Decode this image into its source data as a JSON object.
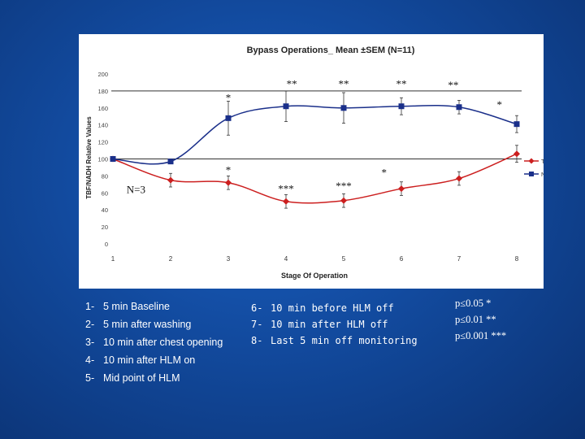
{
  "chart_data": {
    "type": "line",
    "title": "Bypass Operations_ Mean ±SEM (N=11)",
    "xlabel": "Stage Of Operation",
    "ylabel": "TBF/NADH Relative Values",
    "categories": [
      "1",
      "2",
      "3",
      "4",
      "5",
      "6",
      "7",
      "8"
    ],
    "ylim": [
      0,
      200
    ],
    "yticks": [
      "0",
      "20",
      "40",
      "60",
      "80",
      "100",
      "120",
      "140",
      "160",
      "180",
      "200"
    ],
    "reference_lines": [
      100,
      180
    ],
    "grid": false,
    "legend_position": "right",
    "series": [
      {
        "name": "TBF",
        "color": "#cc1f1f",
        "marker": "diamond",
        "values": [
          100,
          75,
          72,
          50,
          51,
          65,
          77,
          106
        ],
        "errors": [
          0,
          8,
          8,
          8,
          8,
          8,
          8,
          10
        ]
      },
      {
        "name": "NADH",
        "color": "#1a2f8a",
        "marker": "square",
        "values": [
          100,
          97,
          148,
          162,
          160,
          162,
          161,
          141
        ],
        "errors": [
          0,
          0,
          20,
          18,
          18,
          10,
          8,
          10
        ]
      }
    ],
    "annotations": [
      {
        "text": "*",
        "x": 3,
        "y": 168
      },
      {
        "text": "**",
        "x": 4.1,
        "y": 184
      },
      {
        "text": "**",
        "x": 5.0,
        "y": 184
      },
      {
        "text": "**",
        "x": 6.0,
        "y": 184
      },
      {
        "text": "**",
        "x": 6.9,
        "y": 183
      },
      {
        "text": "*",
        "x": 7.7,
        "y": 160
      },
      {
        "text": "*",
        "x": 3,
        "y": 83
      },
      {
        "text": "***",
        "x": 4.0,
        "y": 61
      },
      {
        "text": "***",
        "x": 5.0,
        "y": 64
      },
      {
        "text": "*",
        "x": 5.7,
        "y": 80
      },
      {
        "text": "N=3",
        "x": 1.4,
        "y": 60
      }
    ]
  },
  "stages_left": [
    {
      "num": "1-",
      "label": "5 min Baseline"
    },
    {
      "num": "2-",
      "label": "5 min after washing"
    },
    {
      "num": "3-",
      "label": "10 min after chest opening"
    },
    {
      "num": "4-",
      "label": "10 min after HLM on"
    },
    {
      "num": "5-",
      "label": "Mid point of HLM"
    }
  ],
  "stages_right": [
    {
      "num": "6-",
      "label": "10 min before HLM off"
    },
    {
      "num": "7-",
      "label": "10 min after HLM off"
    },
    {
      "num": "8-",
      "label": "Last 5 min off monitoring"
    }
  ],
  "significance": [
    {
      "text": "p≤0.05 *"
    },
    {
      "text": "p≤0.01 **"
    },
    {
      "text": "p≤0.001 ***"
    }
  ]
}
